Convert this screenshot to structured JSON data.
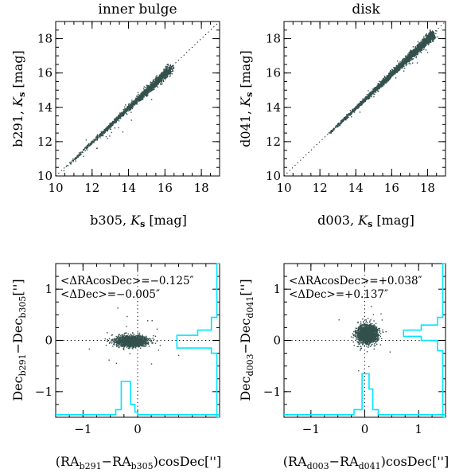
{
  "chart_data": [
    {
      "type": "scatter",
      "title": "inner bulge",
      "xlabel": "b305, K_s [mag]",
      "ylabel": "b291, K_s [mag]",
      "xlim": [
        10,
        19
      ],
      "ylim": [
        10,
        19
      ],
      "xticks": [
        10,
        12,
        14,
        16,
        18
      ],
      "yticks": [
        10,
        12,
        14,
        16,
        18
      ],
      "reference_line": "y = x",
      "point_range": [
        10.3,
        16.3
      ],
      "color": "#33504c"
    },
    {
      "type": "scatter",
      "title": "disk",
      "xlabel": "d003, K_s [mag]",
      "ylabel": "d041, K_s [mag]",
      "xlim": [
        10,
        19
      ],
      "ylim": [
        10,
        19
      ],
      "xticks": [
        10,
        12,
        14,
        16,
        18
      ],
      "yticks": [
        10,
        12,
        14,
        16,
        18
      ],
      "reference_line": "y = x",
      "point_range": [
        12.0,
        18.3
      ],
      "color": "#33504c"
    },
    {
      "type": "scatter",
      "xlabel": "(RA_b291 − RA_b305) cosDec ['']",
      "ylabel": "Dec_b291 − Dec_b305 ['']",
      "xlim": [
        -1.5,
        1.5
      ],
      "ylim": [
        -1.5,
        1.5
      ],
      "xticks": [
        -1,
        0
      ],
      "yticks": [
        -1,
        0,
        1
      ],
      "annotations": [
        "<ΔRAcosDec>=−0.125″",
        "<ΔDec>=−0.005″"
      ],
      "center": [
        -0.125,
        -0.005
      ],
      "spread": [
        0.14,
        0.05
      ],
      "color": "#33504c",
      "hist_color": "#00e5ff"
    },
    {
      "type": "scatter",
      "xlabel": "(RA_d003 − RA_d041) cosDec ['']",
      "ylabel": "Dec_d003 − Dec_d041 ['']",
      "xlim": [
        -1.5,
        1.5
      ],
      "ylim": [
        -1.5,
        1.5
      ],
      "xticks": [
        -1,
        0,
        1
      ],
      "yticks": [
        -1,
        0,
        1
      ],
      "annotations": [
        "<ΔRAcosDec>=+0.038″",
        "<ΔDec>=+0.137″"
      ],
      "center": [
        0.038,
        0.137
      ],
      "spread": [
        0.09,
        0.09
      ],
      "color": "#33504c",
      "hist_color": "#00e5ff"
    }
  ]
}
